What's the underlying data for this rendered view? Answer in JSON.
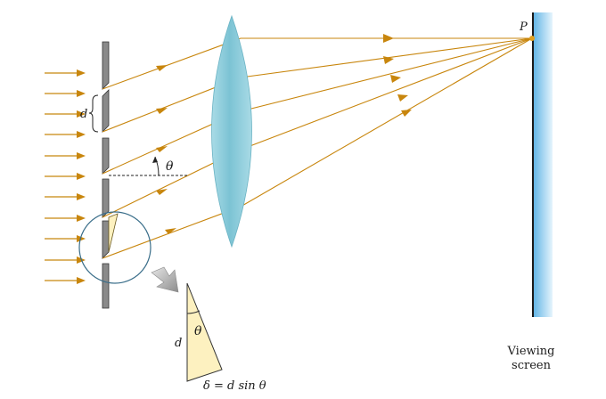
{
  "labels": {
    "point": "P",
    "slit_spacing": "d",
    "angle": "θ",
    "triangle_side": "d",
    "triangle_angle": "θ",
    "path_difference": "δ = d sin θ",
    "screen_line1": "Viewing",
    "screen_line2": "screen"
  },
  "colors": {
    "ray": "#c8860d",
    "grating": "#8a8a8a",
    "lens": "#7fc8d8",
    "screen": "#8fd0f0",
    "triangle": "#fdf1c0",
    "magnifier": "#3a6e8a"
  }
}
